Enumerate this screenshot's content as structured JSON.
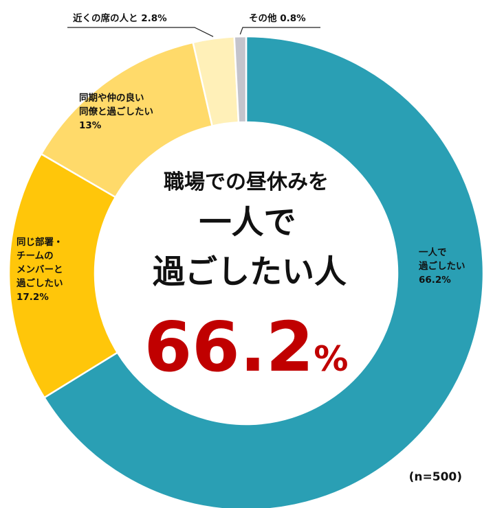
{
  "chart_data": {
    "type": "pie",
    "slices": [
      {
        "label_lines": [
          "一人で",
          "過ごしたい",
          "66.2%"
        ],
        "value": 66.2,
        "color": "#2a9fb4"
      },
      {
        "label_lines": [
          "同じ部署・",
          "チームの",
          "メンバーと",
          "過ごしたい",
          "17.2%"
        ],
        "value": 17.2,
        "color": "#ffc60a"
      },
      {
        "label_lines": [
          "同期や仲の良い",
          "同僚と過ごしたい",
          "13%"
        ],
        "value": 13.0,
        "color": "#ffda6a"
      },
      {
        "label_lines": [
          "近くの席の人と 2.8%"
        ],
        "value": 2.8,
        "color": "#fff0b8"
      },
      {
        "label_lines": [
          "その他 0.8%"
        ],
        "value": 0.8,
        "color": "#c4c4cc"
      }
    ],
    "center": {
      "line1": "職場での昼休みを",
      "line2": "一人で",
      "line3": "過ごしたい人",
      "value": "66.2",
      "unit": "%"
    },
    "sample_size": "(n=500)",
    "highlight_color": "#c00000"
  }
}
